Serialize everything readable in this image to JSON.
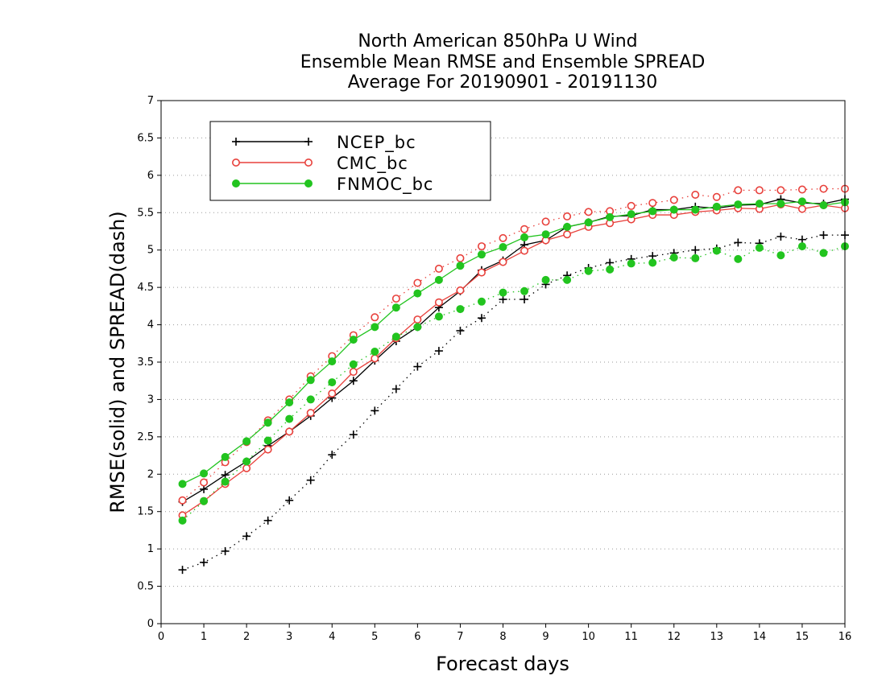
{
  "chart_data": {
    "type": "line",
    "title": [
      "North American 850hPa U Wind",
      "Ensemble Mean RMSE and Ensemble SPREAD",
      "Average For 20190901 - 20191130"
    ],
    "xlabel": "Forecast days",
    "ylabel": "RMSE(solid) and SPREAD(dash)",
    "xlim": [
      0,
      16
    ],
    "ylim": [
      0,
      7
    ],
    "xticks": [
      0,
      1,
      2,
      3,
      4,
      5,
      6,
      7,
      8,
      9,
      10,
      11,
      12,
      13,
      14,
      15,
      16
    ],
    "yticks": [
      0,
      0.5,
      1,
      1.5,
      2,
      2.5,
      3,
      3.5,
      4,
      4.5,
      5,
      5.5,
      6,
      6.5,
      7
    ],
    "grid": "horizontal dotted",
    "legend_position": "top-left",
    "x": [
      0.5,
      1,
      1.5,
      2,
      2.5,
      3,
      3.5,
      4,
      4.5,
      5,
      5.5,
      6,
      6.5,
      7,
      7.5,
      8,
      8.5,
      9,
      9.5,
      10,
      10.5,
      11,
      11.5,
      12,
      12.5,
      13,
      13.5,
      14,
      14.5,
      15,
      15.5,
      16
    ],
    "series": [
      {
        "name": "NCEP_bc",
        "color": "#000000",
        "marker": "plus",
        "rmse": [
          1.63,
          1.8,
          1.99,
          2.17,
          2.38,
          2.57,
          2.78,
          3.02,
          3.25,
          3.52,
          3.78,
          3.97,
          4.23,
          4.45,
          4.73,
          4.86,
          5.07,
          5.13,
          5.31,
          5.37,
          5.45,
          5.46,
          5.54,
          5.54,
          5.58,
          5.56,
          5.6,
          5.61,
          5.68,
          5.63,
          5.62,
          5.68
        ],
        "spread": [
          0.72,
          0.82,
          0.97,
          1.17,
          1.38,
          1.65,
          1.92,
          2.26,
          2.53,
          2.85,
          3.14,
          3.44,
          3.65,
          3.92,
          4.09,
          4.34,
          4.34,
          4.54,
          4.66,
          4.76,
          4.83,
          4.88,
          4.92,
          4.96,
          5.0,
          5.02,
          5.1,
          5.09,
          5.18,
          5.14,
          5.2,
          5.2
        ]
      },
      {
        "name": "CMC_bc",
        "color": "#e8413c",
        "marker": "open-circle",
        "rmse": [
          1.45,
          1.64,
          1.87,
          2.08,
          2.33,
          2.57,
          2.82,
          3.08,
          3.37,
          3.55,
          3.82,
          4.07,
          4.3,
          4.46,
          4.7,
          4.84,
          4.99,
          5.13,
          5.21,
          5.31,
          5.36,
          5.41,
          5.47,
          5.47,
          5.51,
          5.53,
          5.56,
          5.55,
          5.61,
          5.55,
          5.6,
          5.56
        ],
        "spread": [
          1.65,
          1.89,
          2.16,
          2.43,
          2.72,
          3.0,
          3.31,
          3.58,
          3.86,
          4.1,
          4.35,
          4.56,
          4.75,
          4.89,
          5.05,
          5.16,
          5.28,
          5.38,
          5.45,
          5.51,
          5.52,
          5.59,
          5.63,
          5.67,
          5.74,
          5.71,
          5.8,
          5.8,
          5.8,
          5.81,
          5.82,
          5.82
        ]
      },
      {
        "name": "FNMOC_bc",
        "color": "#22c41f",
        "marker": "filled-circle",
        "rmse": [
          1.87,
          2.01,
          2.23,
          2.44,
          2.69,
          2.96,
          3.26,
          3.51,
          3.8,
          3.97,
          4.23,
          4.42,
          4.6,
          4.79,
          4.94,
          5.04,
          5.17,
          5.21,
          5.31,
          5.37,
          5.44,
          5.48,
          5.52,
          5.54,
          5.54,
          5.58,
          5.61,
          5.62,
          5.62,
          5.65,
          5.6,
          5.64
        ],
        "spread": [
          1.38,
          1.64,
          1.9,
          2.17,
          2.45,
          2.74,
          3.0,
          3.23,
          3.47,
          3.64,
          3.84,
          3.97,
          4.11,
          4.21,
          4.31,
          4.43,
          4.45,
          4.6,
          4.6,
          4.72,
          4.74,
          4.82,
          4.83,
          4.9,
          4.89,
          4.99,
          4.88,
          5.03,
          4.93,
          5.05,
          4.96,
          5.05
        ]
      }
    ]
  }
}
